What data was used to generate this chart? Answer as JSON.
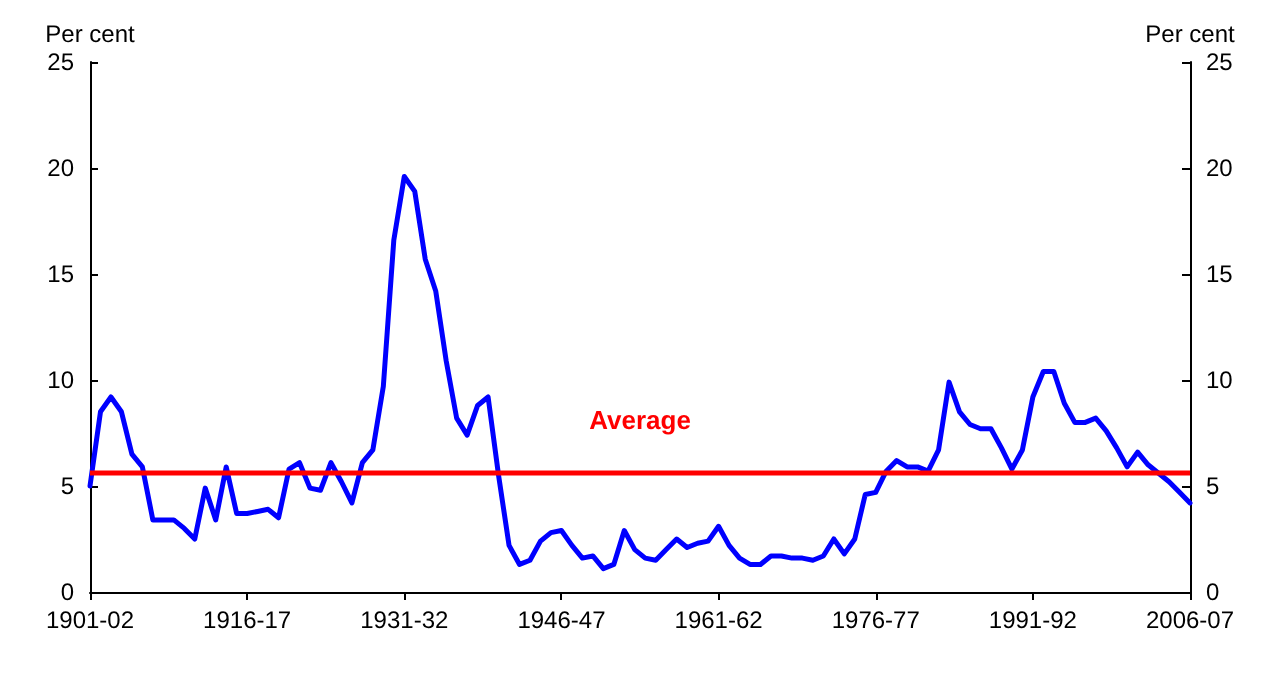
{
  "chart_data": {
    "type": "line",
    "ylabel": "Per cent",
    "y2label": "Per cent",
    "categories": [
      "1901-02",
      null,
      null,
      null,
      null,
      null,
      null,
      null,
      null,
      null,
      null,
      null,
      null,
      null,
      null,
      "1916-17",
      null,
      null,
      null,
      null,
      null,
      null,
      null,
      null,
      null,
      null,
      null,
      null,
      null,
      null,
      "1931-32",
      null,
      null,
      null,
      null,
      null,
      null,
      null,
      null,
      null,
      null,
      null,
      null,
      null,
      null,
      "1946-47",
      null,
      null,
      null,
      null,
      null,
      null,
      null,
      null,
      null,
      null,
      null,
      null,
      null,
      null,
      "1961-62",
      null,
      null,
      null,
      null,
      null,
      null,
      null,
      null,
      null,
      null,
      null,
      null,
      null,
      null,
      "1976-77",
      null,
      null,
      null,
      null,
      null,
      null,
      null,
      null,
      null,
      null,
      null,
      null,
      null,
      null,
      "1991-92",
      null,
      null,
      null,
      null,
      null,
      null,
      null,
      null,
      null,
      null,
      null,
      null,
      null,
      null,
      "2006-07"
    ],
    "series": [
      {
        "color": "#0000ff",
        "values": [
          5.0,
          8.5,
          9.2,
          8.5,
          6.5,
          5.9,
          3.4,
          3.4,
          3.4,
          3.0,
          2.5,
          4.9,
          3.4,
          5.9,
          3.7,
          3.7,
          3.8,
          3.9,
          3.5,
          5.8,
          6.1,
          4.9,
          4.8,
          6.1,
          5.2,
          4.2,
          6.1,
          6.7,
          9.7,
          16.6,
          19.6,
          18.9,
          15.7,
          14.2,
          10.9,
          8.2,
          7.4,
          8.8,
          9.2,
          5.5,
          2.2,
          1.3,
          1.5,
          2.4,
          2.8,
          2.9,
          2.2,
          1.6,
          1.7,
          1.1,
          1.3,
          2.9,
          2.0,
          1.6,
          1.5,
          2.0,
          2.5,
          2.1,
          2.3,
          2.4,
          3.1,
          2.2,
          1.6,
          1.3,
          1.3,
          1.7,
          1.7,
          1.6,
          1.6,
          1.5,
          1.7,
          2.5,
          1.8,
          2.5,
          4.6,
          4.7,
          5.7,
          6.2,
          5.9,
          5.9,
          5.7,
          6.7,
          9.9,
          8.5,
          7.9,
          7.7,
          7.7,
          6.8,
          5.8,
          6.7,
          9.2,
          10.4,
          10.4,
          8.9,
          8.0,
          8.0,
          8.2,
          7.6,
          6.8,
          5.9,
          6.6,
          6.0,
          5.6,
          5.2,
          4.7,
          4.2
        ]
      }
    ],
    "ylim": [
      0,
      25
    ],
    "yticks": [
      0,
      5,
      10,
      15,
      20,
      25
    ],
    "y2lim": [
      0,
      25
    ],
    "y2ticks": [
      0,
      5,
      10,
      15,
      20,
      25
    ],
    "ref_lines": [
      {
        "axis": "y",
        "value": 5.6,
        "label": "Average",
        "color": "#ff0000"
      }
    ],
    "grid": false,
    "marker": "none",
    "line_style": "solid"
  }
}
